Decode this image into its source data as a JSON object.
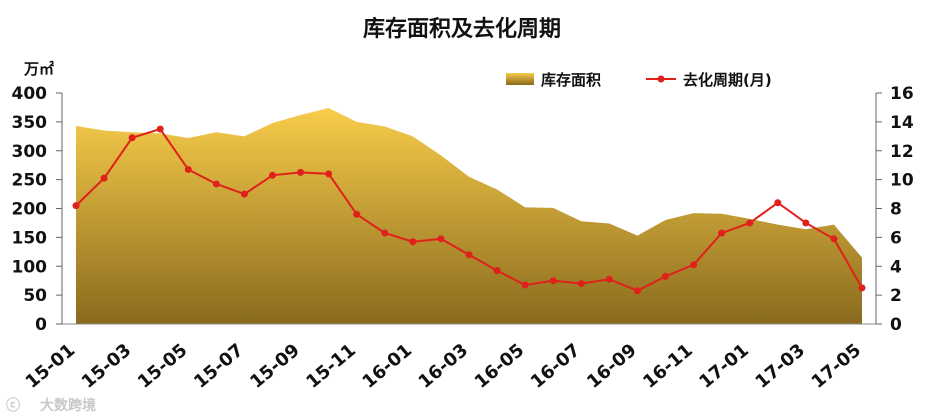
{
  "chart_data": {
    "type": "area+line",
    "title": "库存面积及去化周期",
    "y_left_unit": "万㎡",
    "y_left_lim": [
      0,
      400
    ],
    "y_left_ticks": [
      "0",
      "50",
      "100",
      "150",
      "200",
      "250",
      "300",
      "350",
      "400"
    ],
    "y_right_lim": [
      0,
      16
    ],
    "y_right_ticks": [
      "0",
      "2",
      "4",
      "6",
      "8",
      "10",
      "12",
      "14",
      "16"
    ],
    "x_categories": [
      "15-01",
      "15-02",
      "15-03",
      "15-04",
      "15-05",
      "15-06",
      "15-07",
      "15-08",
      "15-09",
      "15-10",
      "15-11",
      "15-12",
      "16-01",
      "16-02",
      "16-03",
      "16-04",
      "16-05",
      "16-06",
      "16-07",
      "16-08",
      "16-09",
      "16-10",
      "16-11",
      "16-12",
      "17-01",
      "17-02",
      "17-03",
      "17-04",
      "17-05"
    ],
    "x_tick_labels": [
      "15-01",
      "15-03",
      "15-05",
      "15-07",
      "15-09",
      "15-11",
      "16-01",
      "16-03",
      "16-05",
      "16-07",
      "16-09",
      "16-11",
      "17-01",
      "17-03",
      "17-05"
    ],
    "legend_position": "top-right",
    "grid": false,
    "series": [
      {
        "name": "库存面积",
        "type": "area",
        "axis": "left",
        "color_top": "#F7CD4A",
        "color_bottom": "#8A6A1E",
        "values": [
          343,
          335,
          332,
          330,
          322,
          332,
          325,
          348,
          362,
          374,
          350,
          342,
          325,
          292,
          255,
          233,
          202,
          201,
          178,
          174,
          153,
          180,
          192,
          191,
          182,
          172,
          164,
          172,
          115
        ]
      },
      {
        "name": "去化周期(月)",
        "type": "line",
        "axis": "right",
        "color": "#E0201B",
        "values": [
          8.2,
          10.1,
          12.9,
          13.5,
          10.7,
          9.7,
          9.0,
          10.3,
          10.5,
          10.4,
          7.6,
          6.3,
          5.7,
          5.9,
          4.8,
          3.7,
          2.7,
          3.0,
          2.8,
          3.1,
          2.3,
          3.3,
          4.1,
          6.3,
          7.0,
          8.4,
          7.0,
          5.9,
          2.5
        ]
      }
    ]
  },
  "watermark": {
    "text": "大数跨境"
  }
}
